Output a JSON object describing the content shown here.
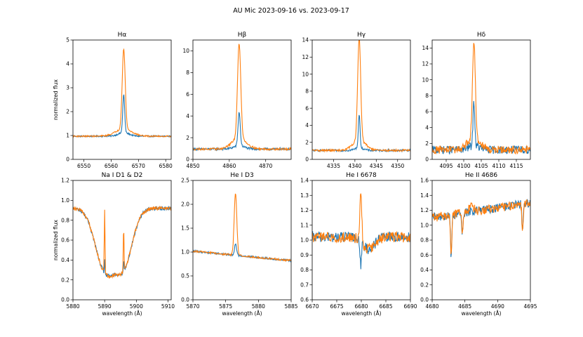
{
  "figure": {
    "suptitle": "AU Mic 2023-09-16 vs. 2023-09-17",
    "colors": {
      "blue": "#1f77b4",
      "orange": "#ff7f0e"
    }
  },
  "chart_data": [
    {
      "type": "line",
      "title": "Hα",
      "ylabel": "normalized flux",
      "xlabel": "",
      "xlim": [
        6546,
        6582
      ],
      "ylim": [
        0,
        5
      ],
      "xticks": [
        6550,
        6560,
        6570,
        6580
      ],
      "yticks": [
        0,
        1,
        2,
        3,
        4,
        5
      ],
      "line_center": 6564.6,
      "continuum": 0.97,
      "noise": 0.03,
      "components": {
        "blue": {
          "amp": 1.6,
          "width": 0.35,
          "broad_amp": 0.15,
          "broad_width": 2
        },
        "orange": {
          "amp": 3.35,
          "width": 0.55,
          "broad_amp": 0.3,
          "broad_width": 3
        }
      },
      "series": [
        {
          "name": "2023-09-16",
          "color": "#1f77b4",
          "peak": 2.6
        },
        {
          "name": "2023-09-17",
          "color": "#ff7f0e",
          "peak": 4.35
        }
      ]
    },
    {
      "type": "line",
      "title": "Hβ",
      "ylabel": "",
      "xlabel": "",
      "xlim": [
        4850,
        4877
      ],
      "ylim": [
        0,
        11
      ],
      "xticks": [
        4850,
        4860,
        4870
      ],
      "yticks": [
        0,
        2,
        4,
        6,
        8,
        10
      ],
      "line_center": 4862.7,
      "continuum": 0.95,
      "noise": 0.1,
      "components": {
        "blue": {
          "amp": 3.1,
          "width": 0.3,
          "broad_amp": 0.3,
          "broad_width": 1.5
        },
        "orange": {
          "amp": 8.7,
          "width": 0.45,
          "broad_amp": 1.0,
          "broad_width": 2
        }
      },
      "series": [
        {
          "name": "2023-09-16",
          "color": "#1f77b4",
          "peak": 4.05
        },
        {
          "name": "2023-09-17",
          "color": "#ff7f0e",
          "peak": 9.65
        }
      ]
    },
    {
      "type": "line",
      "title": "Hγ",
      "ylabel": "",
      "xlabel": "",
      "xlim": [
        4330,
        4353
      ],
      "ylim": [
        0,
        14
      ],
      "xticks": [
        4335,
        4340,
        4345,
        4350
      ],
      "yticks": [
        0,
        2,
        4,
        6,
        8,
        10,
        12,
        14
      ],
      "line_center": 4341.0,
      "continuum": 1.05,
      "noise": 0.12,
      "components": {
        "blue": {
          "amp": 3.9,
          "width": 0.2,
          "broad_amp": 0.3,
          "broad_width": 1
        },
        "orange": {
          "amp": 12.0,
          "width": 0.35,
          "broad_amp": 1.2,
          "broad_width": 1.5
        }
      },
      "series": [
        {
          "name": "2023-09-16",
          "color": "#1f77b4",
          "peak": 4.9
        },
        {
          "name": "2023-09-17",
          "color": "#ff7f0e",
          "peak": 13.1
        }
      ]
    },
    {
      "type": "line",
      "title": "Hδ",
      "ylabel": "",
      "xlabel": "",
      "xlim": [
        4091,
        4119
      ],
      "ylim": [
        0,
        15
      ],
      "xticks": [
        4095,
        4100,
        4105,
        4110,
        4115
      ],
      "yticks": [
        0,
        2,
        4,
        6,
        8,
        10,
        12,
        14
      ],
      "line_center": 4102.9,
      "continuum": 1.2,
      "noise": 0.5,
      "components": {
        "blue": {
          "amp": 5.6,
          "width": 0.25,
          "broad_amp": 0.5,
          "broad_width": 1.5
        },
        "orange": {
          "amp": 12.2,
          "width": 0.4,
          "broad_amp": 1.5,
          "broad_width": 1.8
        }
      },
      "series": [
        {
          "name": "2023-09-16",
          "color": "#1f77b4",
          "peak": 6.8
        },
        {
          "name": "2023-09-17",
          "color": "#ff7f0e",
          "peak": 13.7
        }
      ]
    },
    {
      "type": "line",
      "title": "Na I D1 & D2",
      "ylabel": "normalized flux",
      "xlabel": "wavelength (Å)",
      "xlim": [
        5880,
        5911
      ],
      "ylim": [
        0,
        1.2
      ],
      "xticks": [
        5880,
        5890,
        5900,
        5910
      ],
      "yticks": [
        0.0,
        0.2,
        0.4,
        0.6,
        0.8,
        1.0,
        1.2
      ],
      "line_center": 5890.0,
      "continuum": 0.92,
      "noise": 0.02,
      "absorption": [
        {
          "center": 5890.0,
          "depth": 0.6,
          "width": 3.0
        },
        {
          "center": 5896.0,
          "depth": 0.55,
          "width": 2.8
        }
      ],
      "components": {
        "blue": {
          "emission": [
            {
              "center": 5890.0,
              "amp": 0.15,
              "width": 0.1
            },
            {
              "center": 5896.0,
              "amp": 0.12,
              "width": 0.1
            }
          ]
        },
        "orange": {
          "emission": [
            {
              "center": 5890.0,
              "amp": 0.65,
              "width": 0.12
            },
            {
              "center": 5896.0,
              "amp": 0.45,
              "width": 0.12
            }
          ]
        }
      },
      "series": [
        {
          "name": "2023-09-16",
          "color": "#1f77b4",
          "minimum": 0.29
        },
        {
          "name": "2023-09-17",
          "color": "#ff7f0e",
          "peak": 0.97
        }
      ]
    },
    {
      "type": "line",
      "title": "He I D3",
      "ylabel": "",
      "xlabel": "wavelength (Å)",
      "xlim": [
        5870,
        5885
      ],
      "ylim": [
        0,
        2.5
      ],
      "xticks": [
        5870,
        5875,
        5880,
        5885
      ],
      "yticks": [
        0.0,
        0.5,
        1.0,
        1.5,
        2.0,
        2.5
      ],
      "line_center": 5876.5,
      "continuum": 1.02,
      "noise": 0.02,
      "slope_end": 0.82,
      "components": {
        "blue": {
          "amp": 0.25,
          "width": 0.15
        },
        "orange": {
          "amp": 1.3,
          "width": 0.2
        }
      },
      "series": [
        {
          "name": "2023-09-16",
          "color": "#1f77b4",
          "peak": 1.25
        },
        {
          "name": "2023-09-17",
          "color": "#ff7f0e",
          "peak": 2.32
        }
      ]
    },
    {
      "type": "line",
      "title": "He I 6678",
      "ylabel": "",
      "xlabel": "wavelength (Å)",
      "xlim": [
        6670,
        6690
      ],
      "ylim": [
        0.6,
        1.4
      ],
      "xticks": [
        6670,
        6675,
        6680,
        6685,
        6690
      ],
      "yticks": [
        0.6,
        0.7,
        0.8,
        0.9,
        1.0,
        1.1,
        1.2,
        1.3,
        1.4
      ],
      "line_center": 6679.9,
      "continuum": 1.02,
      "noise": 0.035,
      "absorption": [
        {
          "center": 6681.5,
          "depth": 0.08,
          "width": 1.2
        }
      ],
      "components": {
        "blue": {
          "amp": -0.15,
          "width": 0.15
        },
        "orange": {
          "amp": 0.33,
          "width": 0.2
        }
      },
      "series": [
        {
          "name": "2023-09-16",
          "color": "#1f77b4",
          "minimum": 0.85
        },
        {
          "name": "2023-09-17",
          "color": "#ff7f0e",
          "peak": 1.36
        }
      ]
    },
    {
      "type": "line",
      "title": "He II 4686",
      "ylabel": "",
      "xlabel": "wavelength (Å)",
      "xlim": [
        4680,
        4695
      ],
      "ylim": [
        0.0,
        1.6
      ],
      "xticks": [
        4680,
        4685,
        4690,
        4695
      ],
      "yticks": [
        0.0,
        0.2,
        0.4,
        0.6,
        0.8,
        1.0,
        1.2,
        1.4,
        1.6
      ],
      "line_center": 4686.0,
      "continuum": 1.1,
      "noise": 0.06,
      "slope_end": 1.3,
      "absorption": [
        {
          "center": 4682.9,
          "depth": 0.55,
          "width": 0.1
        },
        {
          "center": 4684.6,
          "depth": 0.3,
          "width": 0.1
        },
        {
          "center": 4693.8,
          "depth": 0.35,
          "width": 0.1
        }
      ],
      "components": {
        "blue": {
          "amp": 0.0,
          "width": 0.2
        },
        "orange": {
          "amp": 0.1,
          "width": 0.3
        }
      },
      "series": [
        {
          "name": "2023-09-16",
          "color": "#1f77b4",
          "minimum": 0.48
        },
        {
          "name": "2023-09-17",
          "color": "#ff7f0e",
          "peak": 1.35
        }
      ]
    }
  ]
}
